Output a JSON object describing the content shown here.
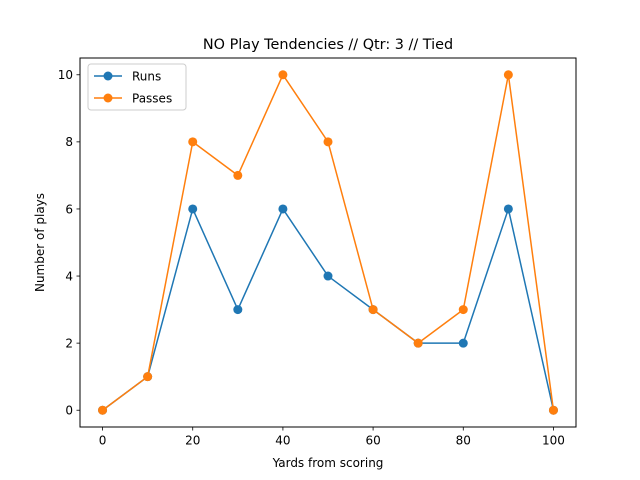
{
  "chart_data": {
    "type": "line",
    "title": "NO Play Tendencies // Qtr: 3 // Tied",
    "xlabel": "Yards from scoring",
    "ylabel": "Number of plays",
    "x": [
      0,
      10,
      20,
      30,
      40,
      50,
      60,
      70,
      80,
      90,
      100
    ],
    "xlim": [
      -5,
      105
    ],
    "ylim": [
      -0.5,
      10.5
    ],
    "xticks": [
      0,
      20,
      40,
      60,
      80,
      100
    ],
    "yticks": [
      0,
      2,
      4,
      6,
      8,
      10
    ],
    "grid": false,
    "legend_position": "top-left",
    "series": [
      {
        "name": "Runs",
        "color": "#1f77b4",
        "marker": "circle",
        "values": [
          0,
          1,
          6,
          3,
          6,
          4,
          3,
          2,
          2,
          6,
          0
        ]
      },
      {
        "name": "Passes",
        "color": "#ff7f0e",
        "marker": "circle",
        "values": [
          0,
          1,
          8,
          7,
          10,
          8,
          3,
          2,
          3,
          10,
          0
        ]
      }
    ]
  }
}
